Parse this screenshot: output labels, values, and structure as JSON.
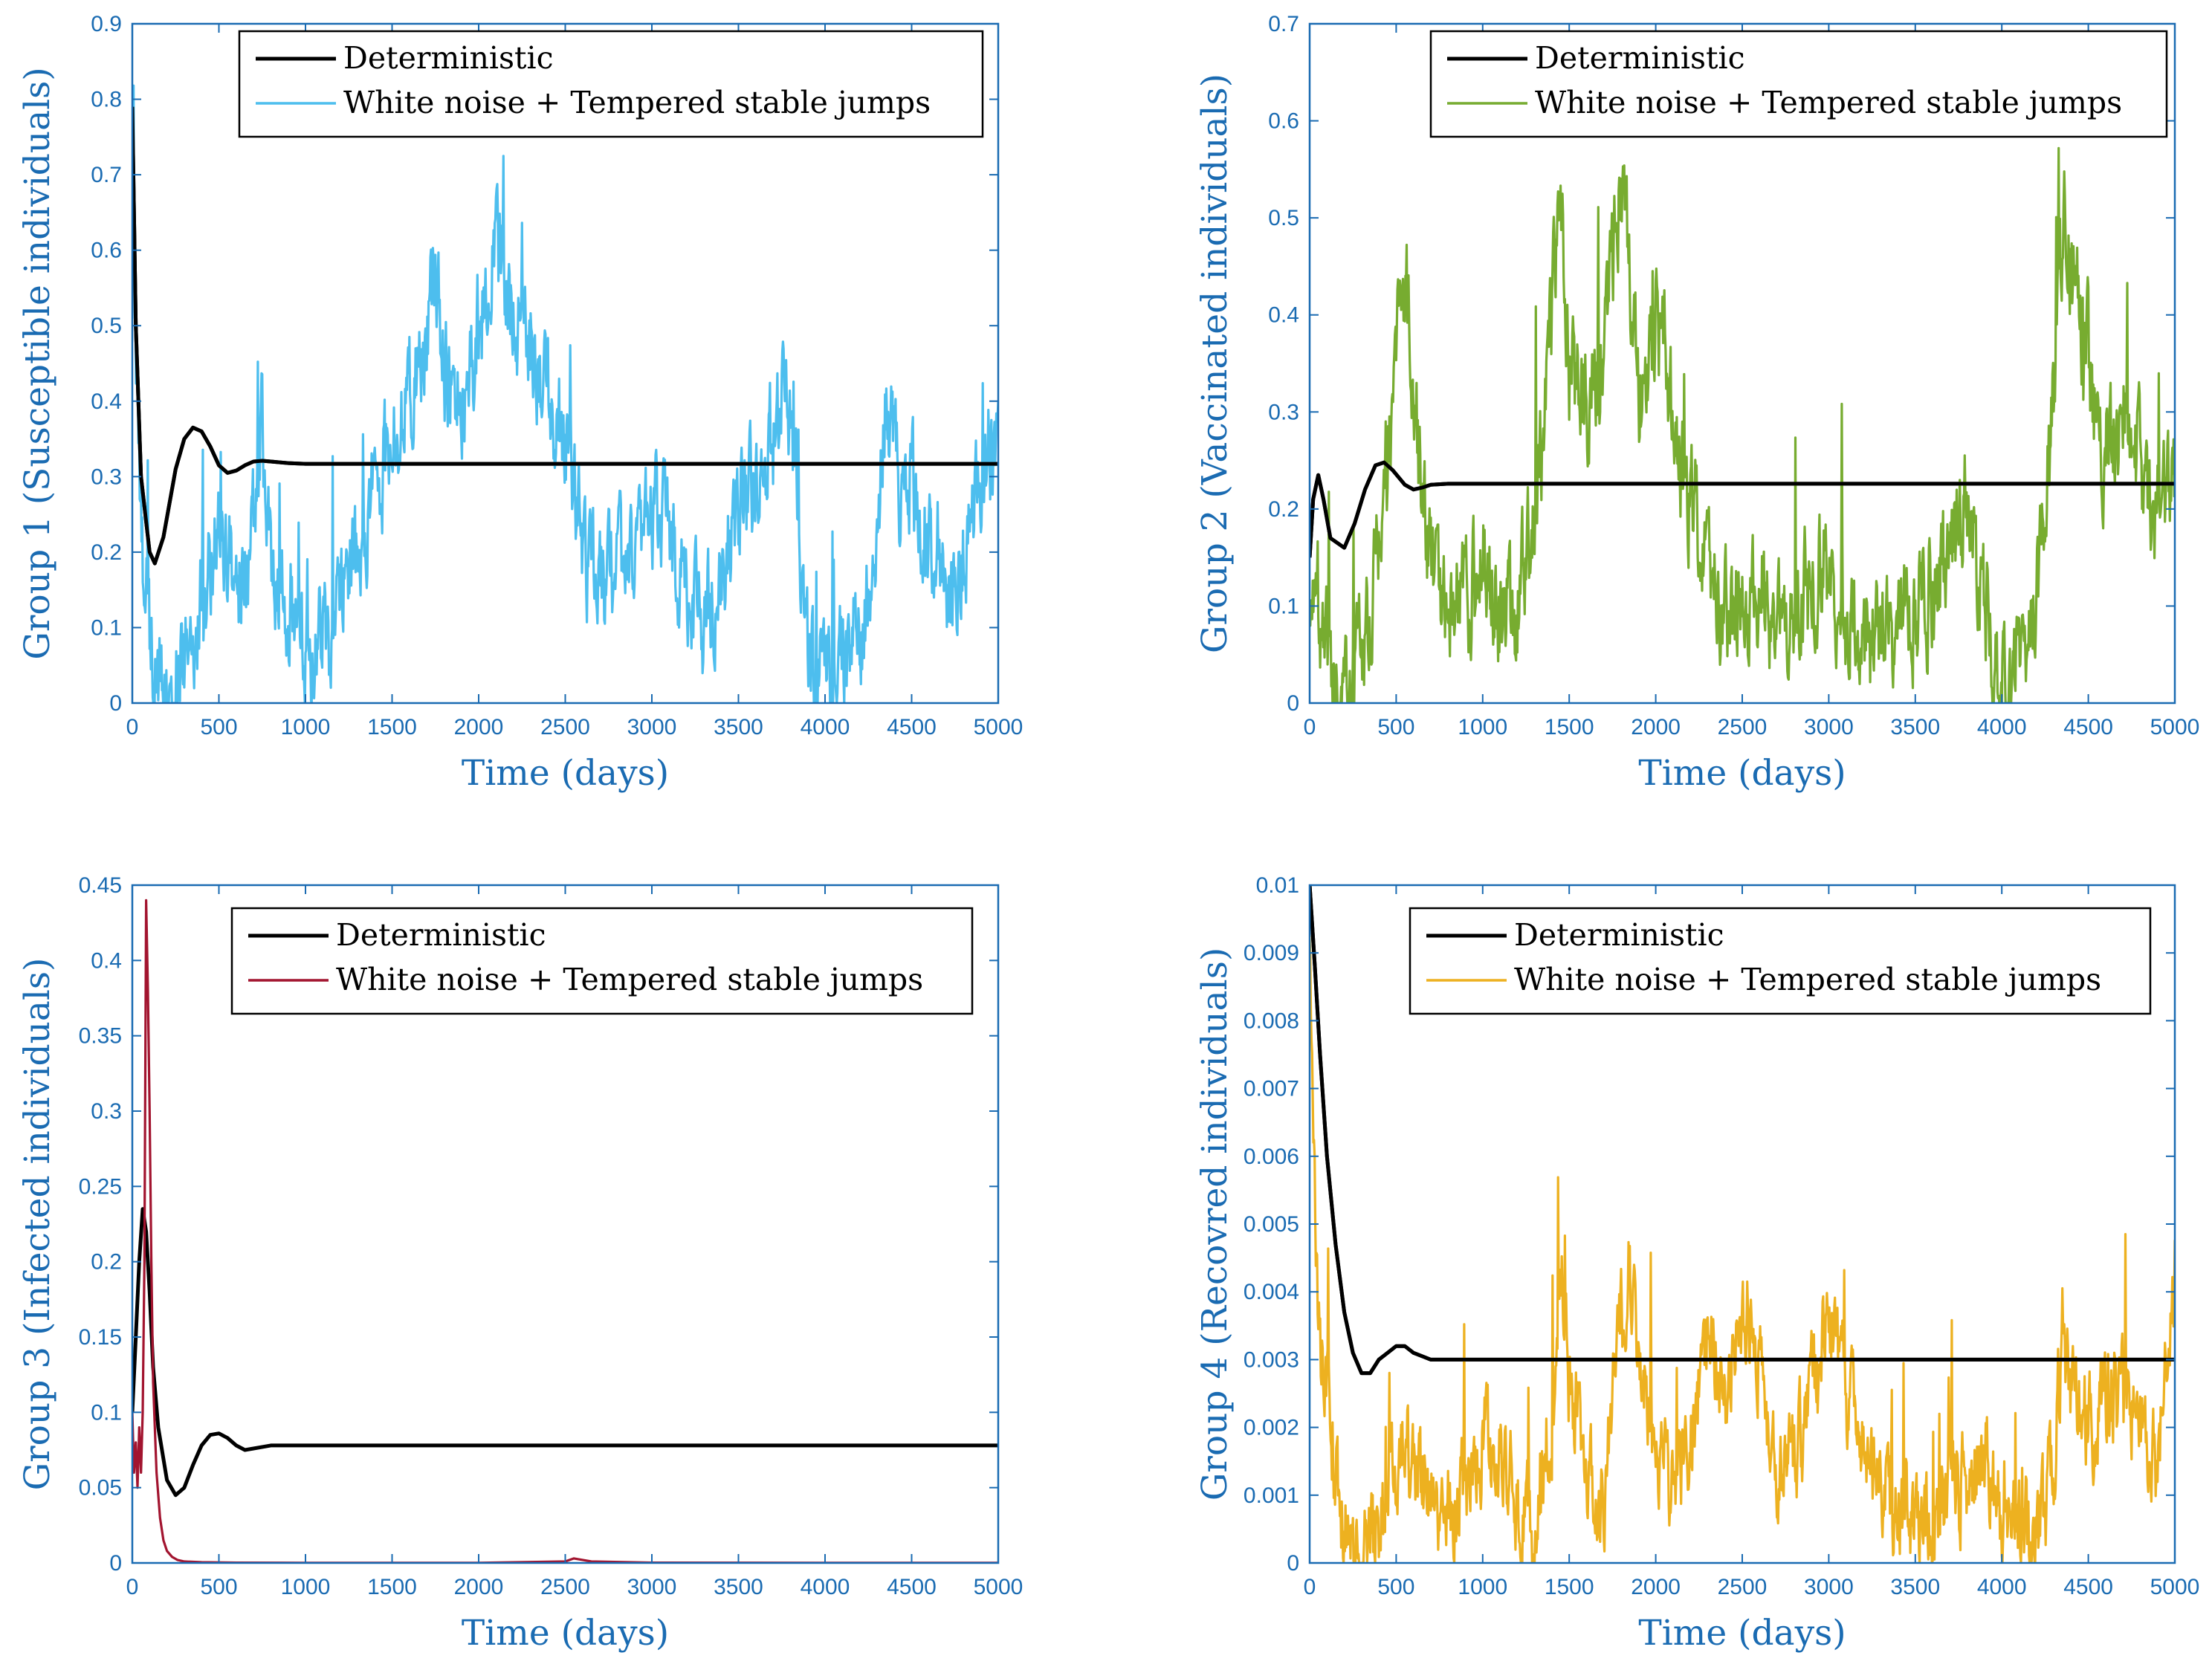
{
  "figure": {
    "axis_color": "#1a6bb2",
    "background": "#ffffff"
  },
  "chart_data": [
    {
      "type": "line",
      "panel": "top-left",
      "title": "",
      "xlabel": "Time (days)",
      "ylabel": "Group 1 (Susceptible individuals)",
      "xlim": [
        0,
        5000
      ],
      "ylim": [
        0,
        0.9
      ],
      "xticks": [
        0,
        500,
        1000,
        1500,
        2000,
        2500,
        3000,
        3500,
        4000,
        4500,
        5000
      ],
      "xtick_labels": [
        "0",
        "500",
        "1000",
        "1500",
        "2000",
        "2500",
        "3000",
        "3500",
        "4000",
        "4500",
        "5000"
      ],
      "yticks": [
        0,
        0.1,
        0.2,
        0.3,
        0.4,
        0.5,
        0.6,
        0.7,
        0.8,
        0.9
      ],
      "ytick_labels": [
        "0",
        "0.1",
        "0.2",
        "0.3",
        "0.4",
        "0.5",
        "0.6",
        "0.7",
        "0.8",
        "0.9"
      ],
      "legend": {
        "placement": "top-right",
        "entries": [
          "Deterministic",
          "White noise + Tempered stable jumps"
        ]
      },
      "series": [
        {
          "name": "Deterministic",
          "color": "#000000",
          "x": [
            0,
            20,
            50,
            100,
            130,
            180,
            250,
            300,
            350,
            400,
            450,
            500,
            550,
            600,
            650,
            700,
            750,
            800,
            900,
            1000,
            1200,
            1500,
            2000,
            3000,
            4000,
            5000
          ],
          "y": [
            0.79,
            0.5,
            0.3,
            0.2,
            0.185,
            0.22,
            0.31,
            0.35,
            0.365,
            0.36,
            0.34,
            0.315,
            0.305,
            0.308,
            0.315,
            0.32,
            0.321,
            0.32,
            0.318,
            0.317,
            0.317,
            0.317,
            0.317,
            0.317,
            0.317,
            0.317
          ]
        },
        {
          "name": "White noise + Tempered stable jumps",
          "color": "#4dbeee",
          "noise": 0.06,
          "x": [
            0,
            30,
            60,
            100,
            150,
            200,
            250,
            300,
            350,
            400,
            450,
            500,
            550,
            600,
            650,
            700,
            750,
            800,
            850,
            900,
            950,
            1000,
            1050,
            1100,
            1150,
            1200,
            1300,
            1400,
            1500,
            1600,
            1700,
            1750,
            1800,
            1900,
            2000,
            2100,
            2150,
            2200,
            2300,
            2400,
            2500,
            2600,
            2700,
            2800,
            2900,
            3000,
            3100,
            3200,
            3300,
            3400,
            3500,
            3600,
            3700,
            3750,
            3800,
            3850,
            3900,
            3950,
            4000,
            4100,
            4200,
            4300,
            4350,
            4400,
            4450,
            4500,
            4600,
            4700,
            4800,
            4900,
            5000
          ],
          "y": [
            0.79,
            0.35,
            0.2,
            0.1,
            0.03,
            0.01,
            0.02,
            0.06,
            0.1,
            0.15,
            0.18,
            0.23,
            0.2,
            0.15,
            0.17,
            0.22,
            0.35,
            0.2,
            0.15,
            0.12,
            0.15,
            0.08,
            0.05,
            0.1,
            0.08,
            0.15,
            0.2,
            0.28,
            0.35,
            0.42,
            0.5,
            0.55,
            0.45,
            0.4,
            0.5,
            0.6,
            0.55,
            0.5,
            0.48,
            0.4,
            0.35,
            0.2,
            0.15,
            0.18,
            0.2,
            0.25,
            0.22,
            0.15,
            0.1,
            0.18,
            0.25,
            0.3,
            0.35,
            0.4,
            0.35,
            0.25,
            0.08,
            0.03,
            0.04,
            0.05,
            0.1,
            0.2,
            0.4,
            0.35,
            0.25,
            0.3,
            0.2,
            0.15,
            0.2,
            0.3,
            0.35
          ]
        }
      ]
    },
    {
      "type": "line",
      "panel": "top-right",
      "title": "",
      "xlabel": "Time (days)",
      "ylabel": "Group 2 (Vaccinated individuals)",
      "xlim": [
        0,
        5000
      ],
      "ylim": [
        0,
        0.7
      ],
      "xticks": [
        0,
        500,
        1000,
        1500,
        2000,
        2500,
        3000,
        3500,
        4000,
        4500,
        5000
      ],
      "xtick_labels": [
        "0",
        "500",
        "1000",
        "1500",
        "2000",
        "2500",
        "3000",
        "3500",
        "4000",
        "4500",
        "5000"
      ],
      "yticks": [
        0,
        0.1,
        0.2,
        0.3,
        0.4,
        0.5,
        0.6,
        0.7
      ],
      "ytick_labels": [
        "0",
        "0.1",
        "0.2",
        "0.3",
        "0.4",
        "0.5",
        "0.6",
        "0.7"
      ],
      "legend": {
        "placement": "top-right",
        "entries": [
          "Deterministic",
          "White noise + Tempered stable jumps"
        ]
      },
      "series": [
        {
          "name": "Deterministic",
          "color": "#000000",
          "x": [
            0,
            20,
            50,
            80,
            120,
            200,
            260,
            320,
            380,
            430,
            480,
            550,
            600,
            650,
            700,
            800,
            900,
            1000,
            1200,
            1500,
            2000,
            3000,
            4000,
            5000
          ],
          "y": [
            0.15,
            0.21,
            0.235,
            0.21,
            0.17,
            0.16,
            0.185,
            0.22,
            0.245,
            0.248,
            0.24,
            0.225,
            0.22,
            0.222,
            0.225,
            0.226,
            0.226,
            0.226,
            0.226,
            0.226,
            0.226,
            0.226,
            0.226,
            0.226
          ]
        },
        {
          "name": "White noise + Tempered stable jumps",
          "color": "#77ac30",
          "noise": 0.05,
          "x": [
            0,
            50,
            100,
            150,
            200,
            250,
            300,
            350,
            400,
            450,
            500,
            550,
            600,
            650,
            700,
            800,
            900,
            1000,
            1100,
            1200,
            1300,
            1400,
            1450,
            1500,
            1600,
            1700,
            1800,
            1850,
            1900,
            2000,
            2100,
            2200,
            2300,
            2400,
            2500,
            2600,
            2700,
            2800,
            2900,
            3000,
            3100,
            3200,
            3300,
            3400,
            3500,
            3600,
            3700,
            3800,
            3900,
            4000,
            4050,
            4100,
            4200,
            4300,
            4350,
            4400,
            4500,
            4600,
            4700,
            4800,
            4900,
            5000
          ],
          "y": [
            0.12,
            0.1,
            0.05,
            0.02,
            0.01,
            0.02,
            0.04,
            0.08,
            0.15,
            0.25,
            0.4,
            0.45,
            0.3,
            0.2,
            0.15,
            0.12,
            0.1,
            0.15,
            0.08,
            0.1,
            0.18,
            0.4,
            0.55,
            0.35,
            0.3,
            0.35,
            0.55,
            0.45,
            0.3,
            0.4,
            0.3,
            0.2,
            0.15,
            0.1,
            0.08,
            0.12,
            0.08,
            0.1,
            0.12,
            0.15,
            0.08,
            0.06,
            0.07,
            0.08,
            0.1,
            0.12,
            0.15,
            0.2,
            0.1,
            0.02,
            0.01,
            0.03,
            0.1,
            0.3,
            0.5,
            0.45,
            0.35,
            0.25,
            0.3,
            0.25,
            0.2,
            0.25
          ]
        }
      ]
    },
    {
      "type": "line",
      "panel": "bottom-left",
      "title": "",
      "xlabel": "Time (days)",
      "ylabel": "Group 3 (Infected individuals)",
      "xlim": [
        0,
        5000
      ],
      "ylim": [
        0,
        0.45
      ],
      "xticks": [
        0,
        500,
        1000,
        1500,
        2000,
        2500,
        3000,
        3500,
        4000,
        4500,
        5000
      ],
      "xtick_labels": [
        "0",
        "500",
        "1000",
        "1500",
        "2000",
        "2500",
        "3000",
        "3500",
        "4000",
        "4500",
        "5000"
      ],
      "yticks": [
        0,
        0.05,
        0.1,
        0.15,
        0.2,
        0.25,
        0.3,
        0.35,
        0.4,
        0.45
      ],
      "ytick_labels": [
        "0",
        "0.05",
        "0.1",
        "0.15",
        "0.2",
        "0.25",
        "0.3",
        "0.35",
        "0.4",
        "0.45"
      ],
      "legend": {
        "placement": "top-right",
        "entries": [
          "Deterministic",
          "White noise + Tempered stable jumps"
        ]
      },
      "series": [
        {
          "name": "Deterministic",
          "color": "#000000",
          "x": [
            0,
            20,
            40,
            60,
            80,
            100,
            120,
            150,
            200,
            250,
            300,
            350,
            400,
            450,
            500,
            550,
            600,
            650,
            700,
            800,
            900,
            1000,
            1200,
            1500,
            2000,
            3000,
            4000,
            5000
          ],
          "y": [
            0.1,
            0.15,
            0.2,
            0.235,
            0.22,
            0.18,
            0.13,
            0.09,
            0.055,
            0.045,
            0.05,
            0.065,
            0.078,
            0.085,
            0.086,
            0.083,
            0.078,
            0.075,
            0.076,
            0.078,
            0.078,
            0.078,
            0.078,
            0.078,
            0.078,
            0.078,
            0.078,
            0.078
          ]
        },
        {
          "name": "White noise + Tempered stable jumps",
          "color": "#a2142f",
          "noise": 0,
          "x": [
            0,
            10,
            20,
            30,
            40,
            50,
            60,
            70,
            80,
            90,
            100,
            110,
            120,
            140,
            160,
            180,
            200,
            230,
            260,
            300,
            400,
            600,
            1000,
            2000,
            2500,
            2550,
            2600,
            2650,
            3000,
            4000,
            5000
          ],
          "y": [
            0.1,
            0.06,
            0.08,
            0.05,
            0.09,
            0.06,
            0.1,
            0.2,
            0.44,
            0.38,
            0.3,
            0.2,
            0.12,
            0.06,
            0.03,
            0.015,
            0.008,
            0.004,
            0.002,
            0.001,
            0.0005,
            0.0002,
            0.0001,
            0.0001,
            0.001,
            0.003,
            0.002,
            0.001,
            0.0002,
            0.0001,
            0.0001
          ]
        }
      ]
    },
    {
      "type": "line",
      "panel": "bottom-right",
      "title": "",
      "xlabel": "Time (days)",
      "ylabel": "Group 4 (Recovred individuals)",
      "xlim": [
        0,
        5000
      ],
      "ylim": [
        0,
        0.01
      ],
      "xticks": [
        0,
        500,
        1000,
        1500,
        2000,
        2500,
        3000,
        3500,
        4000,
        4500,
        5000
      ],
      "xtick_labels": [
        "0",
        "500",
        "1000",
        "1500",
        "2000",
        "2500",
        "3000",
        "3500",
        "4000",
        "4500",
        "5000"
      ],
      "yticks": [
        0,
        0.001,
        0.002,
        0.003,
        0.004,
        0.005,
        0.006,
        0.007,
        0.008,
        0.009,
        0.01
      ],
      "ytick_labels": [
        "0",
        "0.001",
        "0.002",
        "0.003",
        "0.004",
        "0.005",
        "0.006",
        "0.007",
        "0.008",
        "0.009",
        "0.01"
      ],
      "legend": {
        "placement": "top-right",
        "entries": [
          "Deterministic",
          "White noise + Tempered stable jumps"
        ]
      },
      "series": [
        {
          "name": "Deterministic",
          "color": "#000000",
          "x": [
            0,
            30,
            60,
            100,
            150,
            200,
            250,
            300,
            350,
            400,
            450,
            500,
            550,
            600,
            650,
            700,
            800,
            900,
            1000,
            1500,
            2000,
            3000,
            4000,
            5000
          ],
          "y": [
            0.01,
            0.0088,
            0.0075,
            0.006,
            0.0047,
            0.0037,
            0.0031,
            0.0028,
            0.0028,
            0.003,
            0.0031,
            0.0032,
            0.0032,
            0.0031,
            0.00305,
            0.003,
            0.003,
            0.003,
            0.003,
            0.003,
            0.003,
            0.003,
            0.003,
            0.003
          ]
        },
        {
          "name": "White noise + Tempered stable jumps",
          "color": "#edb120",
          "noise": 0.0006,
          "x": [
            0,
            30,
            60,
            100,
            150,
            200,
            250,
            300,
            350,
            400,
            450,
            500,
            550,
            600,
            700,
            800,
            900,
            1000,
            1100,
            1200,
            1300,
            1400,
            1450,
            1500,
            1600,
            1700,
            1800,
            1850,
            1900,
            2000,
            2100,
            2200,
            2300,
            2400,
            2500,
            2600,
            2700,
            2800,
            2900,
            3000,
            3100,
            3200,
            3300,
            3400,
            3500,
            3600,
            3700,
            3800,
            3900,
            4000,
            4100,
            4200,
            4300,
            4350,
            4400,
            4500,
            4600,
            4700,
            4800,
            4900,
            5000
          ],
          "y": [
            0.009,
            0.005,
            0.003,
            0.0025,
            0.0015,
            0.0005,
            0.0002,
            0.0002,
            0.0003,
            0.0005,
            0.001,
            0.0015,
            0.0018,
            0.0013,
            0.001,
            0.0008,
            0.0012,
            0.0018,
            0.0015,
            0.0008,
            0.0005,
            0.002,
            0.005,
            0.0025,
            0.0015,
            0.001,
            0.0035,
            0.0045,
            0.003,
            0.0015,
            0.001,
            0.0015,
            0.0035,
            0.0025,
            0.004,
            0.003,
            0.0015,
            0.0015,
            0.0025,
            0.0035,
            0.0025,
            0.0015,
            0.0012,
            0.0008,
            0.0005,
            0.0007,
            0.0012,
            0.0012,
            0.0015,
            0.0005,
            0.0004,
            0.0003,
            0.0015,
            0.0035,
            0.0025,
            0.002,
            0.0025,
            0.0025,
            0.002,
            0.0015,
            0.0045
          ]
        }
      ]
    }
  ]
}
